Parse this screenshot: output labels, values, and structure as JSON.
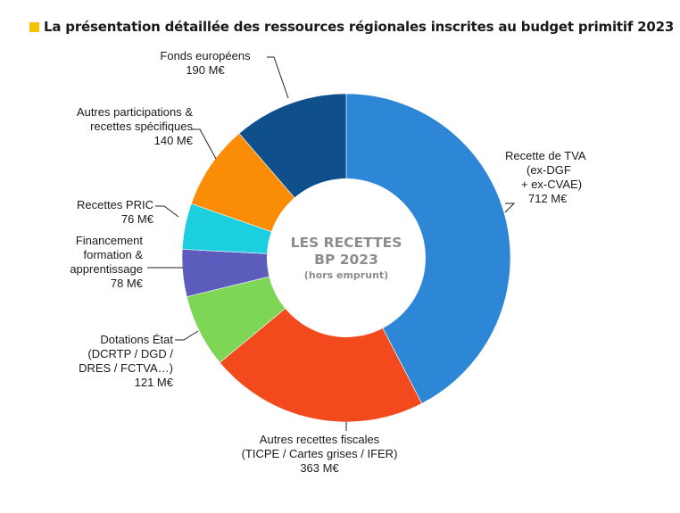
{
  "title": "La présentation détaillée des ressources régionales inscrites au budget primitif 2023",
  "center": {
    "line1": "LES RECETTES",
    "line2": "BP 2023",
    "line3": "(hors emprunt)"
  },
  "chart_data": {
    "type": "pie",
    "title": "La présentation détaillée des ressources régionales inscrites au budget primitif 2023",
    "unit": "M€",
    "start_angle_deg": 0,
    "direction": "clockwise",
    "slices": [
      {
        "label": [
          "Recette de TVA",
          "(ex-DGF",
          "+ ex-CVAE)"
        ],
        "value": 712,
        "value_label": "712 M€",
        "color": "#2e86d6"
      },
      {
        "label": [
          "Autres recettes fiscales",
          "(TICPE / Cartes grises / IFER)"
        ],
        "value": 363,
        "value_label": "363 M€",
        "color": "#f24a1c"
      },
      {
        "label": [
          "Dotations État",
          "(DCRTP / DGD /",
          "DRES / FCTVA…)"
        ],
        "value": 121,
        "value_label": "121 M€",
        "color": "#7dd655"
      },
      {
        "label": [
          "Financement",
          "formation &",
          "apprentissage"
        ],
        "value": 78,
        "value_label": "78 M€",
        "color": "#5c5cbd"
      },
      {
        "label": [
          "Recettes PRIC"
        ],
        "value": 76,
        "value_label": "76 M€",
        "color": "#1bcfdf"
      },
      {
        "label": [
          "Autres participations &",
          "recettes spécifiques"
        ],
        "value": 140,
        "value_label": "140 M€",
        "color": "#fb8c06"
      },
      {
        "label": [
          "Fonds européens"
        ],
        "value": 190,
        "value_label": "190 M€",
        "color": "#0f4f8c"
      }
    ]
  }
}
